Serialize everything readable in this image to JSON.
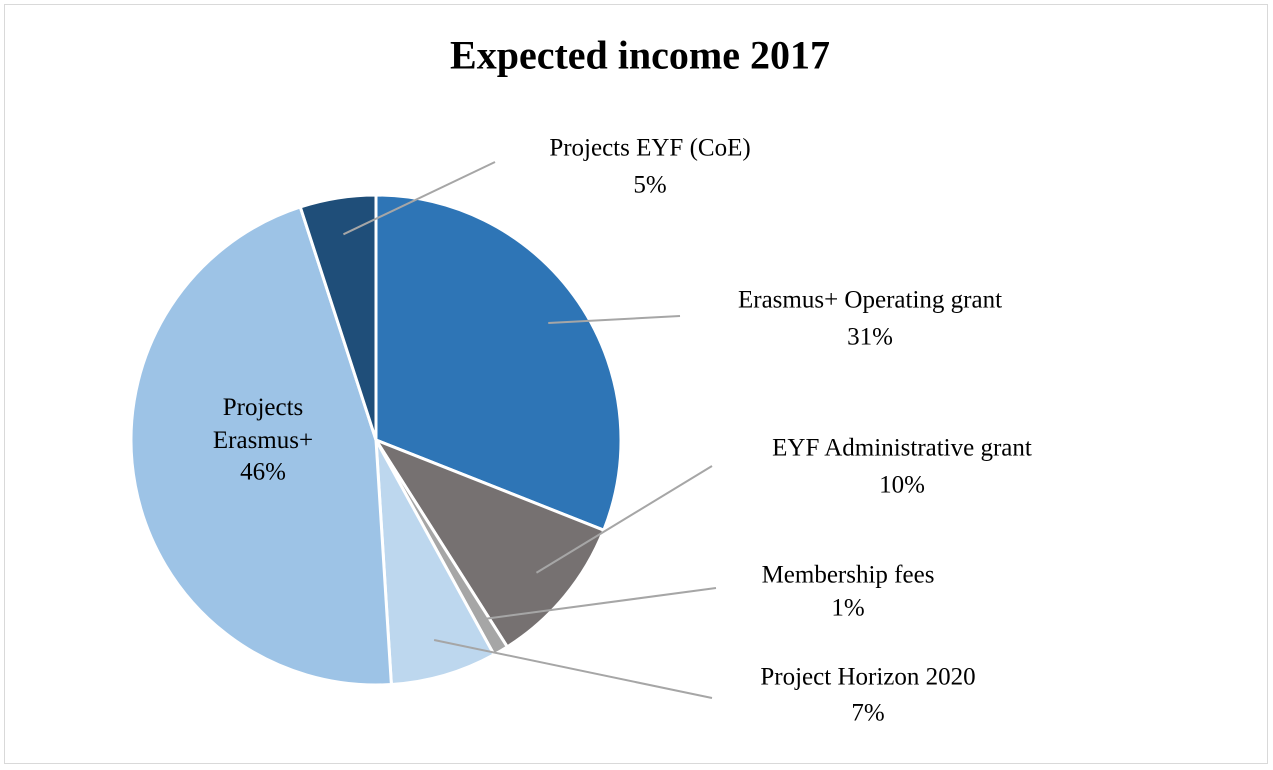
{
  "chart_data": {
    "type": "pie",
    "title": "Expected income 2017",
    "categories": [
      "Erasmus+ Operating grant",
      "EYF Administrative grant",
      "Membership fees",
      "Project Horizon 2020",
      "Projects Erasmus+",
      "Projects EYF (CoE)"
    ],
    "values": [
      31,
      10,
      1,
      7,
      46,
      5
    ],
    "value_labels": [
      "31%",
      "10%",
      "1%",
      "7%",
      "46%",
      "5%"
    ],
    "colors": [
      "#2e75b6",
      "#767171",
      "#a6a6a6",
      "#bdd7ee",
      "#9dc3e6",
      "#1f4e79"
    ]
  }
}
